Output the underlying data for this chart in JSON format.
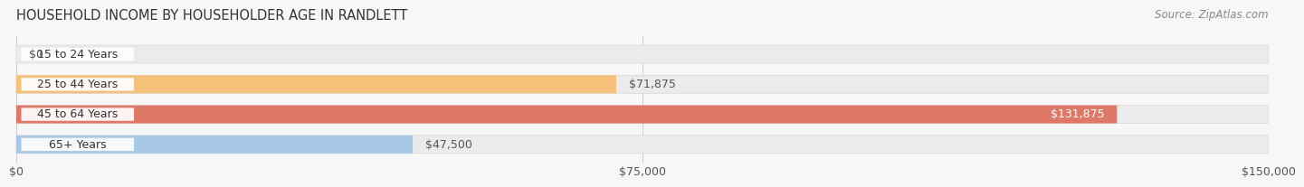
{
  "title": "HOUSEHOLD INCOME BY HOUSEHOLDER AGE IN RANDLETT",
  "source": "Source: ZipAtlas.com",
  "categories": [
    "15 to 24 Years",
    "25 to 44 Years",
    "45 to 64 Years",
    "65+ Years"
  ],
  "values": [
    0,
    71875,
    131875,
    47500
  ],
  "bar_colors": [
    "#f4a0b0",
    "#f5c07a",
    "#e07868",
    "#a8c8e8"
  ],
  "value_labels": [
    "$0",
    "$71,875",
    "$131,875",
    "$47,500"
  ],
  "value_label_colors": [
    "#555555",
    "#555555",
    "#ffffff",
    "#555555"
  ],
  "xlim": [
    0,
    150000
  ],
  "xticks": [
    0,
    75000,
    150000
  ],
  "xtick_labels": [
    "$0",
    "$75,000",
    "$150,000"
  ],
  "title_fontsize": 10.5,
  "label_fontsize": 9,
  "tick_fontsize": 9,
  "source_fontsize": 8.5
}
